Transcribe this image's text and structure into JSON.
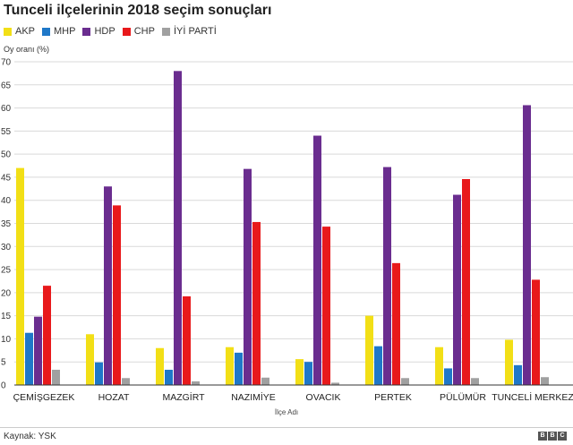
{
  "chart_data": {
    "type": "bar",
    "title": "Tunceli ilçelerinin 2018 seçim sonuçları",
    "ylabel": "Oy oranı (%)",
    "xlabel": "İlçe Adı",
    "ylim": [
      0,
      70
    ],
    "yticks": [
      0,
      5,
      10,
      15,
      20,
      25,
      30,
      35,
      40,
      45,
      50,
      55,
      60,
      65,
      70
    ],
    "categories": [
      "ÇEMİŞGEZEK",
      "HOZAT",
      "MAZGİRT",
      "NAZIMİYE",
      "OVACIK",
      "PERTEK",
      "PÜLÜMÜR",
      "TUNCELİ MERKEZ"
    ],
    "series": [
      {
        "name": "AKP",
        "color": "#f2df16",
        "values": [
          47.0,
          11.0,
          8.0,
          8.2,
          5.6,
          15.0,
          8.2,
          9.8
        ]
      },
      {
        "name": "MHP",
        "color": "#1f78c8",
        "values": [
          11.3,
          4.9,
          3.3,
          7.0,
          5.0,
          8.4,
          3.6,
          4.3
        ]
      },
      {
        "name": "HDP",
        "color": "#6a2d8f",
        "values": [
          14.8,
          43.0,
          68.0,
          46.8,
          54.0,
          47.2,
          41.2,
          60.6
        ]
      },
      {
        "name": "CHP",
        "color": "#e8191b",
        "values": [
          21.5,
          38.9,
          19.2,
          35.3,
          34.3,
          26.4,
          44.6,
          22.8
        ]
      },
      {
        "name": "İYİ PARTİ",
        "color": "#a0a0a0",
        "values": [
          3.3,
          1.5,
          0.8,
          1.6,
          0.5,
          1.5,
          1.5,
          1.7
        ]
      }
    ],
    "legend_position": "top-left",
    "grid": true
  },
  "footer": {
    "source": "Kaynak: YSK",
    "logo": [
      "B",
      "B",
      "C"
    ]
  }
}
